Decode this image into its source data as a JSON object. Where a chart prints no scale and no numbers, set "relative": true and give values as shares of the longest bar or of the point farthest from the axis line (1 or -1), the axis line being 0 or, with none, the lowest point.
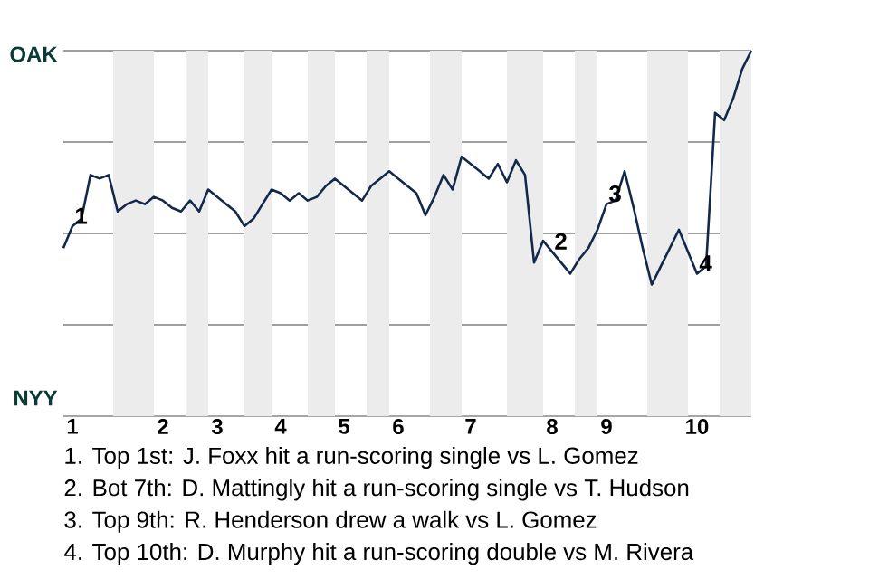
{
  "chart_data": {
    "type": "line",
    "relative": true,
    "categories": [
      null,
      "1",
      null,
      null,
      null,
      null,
      null,
      null,
      null,
      null,
      null,
      "2",
      null,
      null,
      null,
      null,
      null,
      "3",
      null,
      null,
      null,
      null,
      null,
      null,
      "4",
      null,
      null,
      null,
      null,
      null,
      null,
      "5",
      null,
      null,
      null,
      null,
      null,
      "6",
      null,
      null,
      null,
      null,
      null,
      null,
      null,
      "7",
      null,
      null,
      null,
      null,
      null,
      null,
      null,
      null,
      "8",
      null,
      null,
      null,
      null,
      null,
      "9",
      null,
      null,
      null,
      null,
      null,
      null,
      null,
      null,
      null,
      "10",
      null,
      null,
      null,
      null,
      null,
      null
    ],
    "series": [
      {
        "color": "#13294b",
        "values": [
          0.46,
          0.52,
          0.54,
          0.66,
          0.65,
          0.66,
          0.56,
          0.58,
          0.59,
          0.58,
          0.6,
          0.59,
          0.57,
          0.56,
          0.59,
          0.56,
          0.62,
          0.6,
          0.58,
          0.56,
          0.52,
          0.54,
          0.58,
          0.62,
          0.61,
          0.59,
          0.61,
          0.59,
          0.6,
          0.63,
          0.65,
          0.63,
          0.61,
          0.59,
          0.63,
          0.65,
          0.67,
          0.65,
          0.63,
          0.61,
          0.55,
          0.6,
          0.66,
          0.62,
          0.71,
          0.69,
          0.67,
          0.65,
          0.69,
          0.64,
          0.7,
          0.66,
          0.42,
          0.48,
          0.45,
          0.42,
          0.39,
          0.43,
          0.46,
          0.51,
          0.58,
          0.59,
          0.67,
          0.57,
          0.46,
          0.36,
          0.41,
          0.46,
          0.51,
          0.45,
          0.39,
          0.41,
          0.83,
          0.81,
          0.87,
          0.95,
          1
        ]
      }
    ],
    "grid": "y",
    "annotations": [
      {
        "text": "1",
        "x": "1",
        "y": 0.52
      },
      {
        "text": "2",
        "x": "8",
        "y": 0.45
      },
      {
        "text": "3",
        "x": "9",
        "y": 0.58
      },
      {
        "text": "4",
        "x": "10",
        "y": 0.39
      },
      "OAK",
      "NYY",
      "1. Top 1st: J. Foxx hit a run-scoring single vs L. Gomez",
      "2. Bot 7th: D. Mattingly hit a run-scoring single vs T. Hudson",
      "3. Top 9th: R. Henderson drew a walk vs L. Gomez",
      "4. Top 10th: D. Murphy hit a run-scoring double vs M. Rivera"
    ]
  }
}
